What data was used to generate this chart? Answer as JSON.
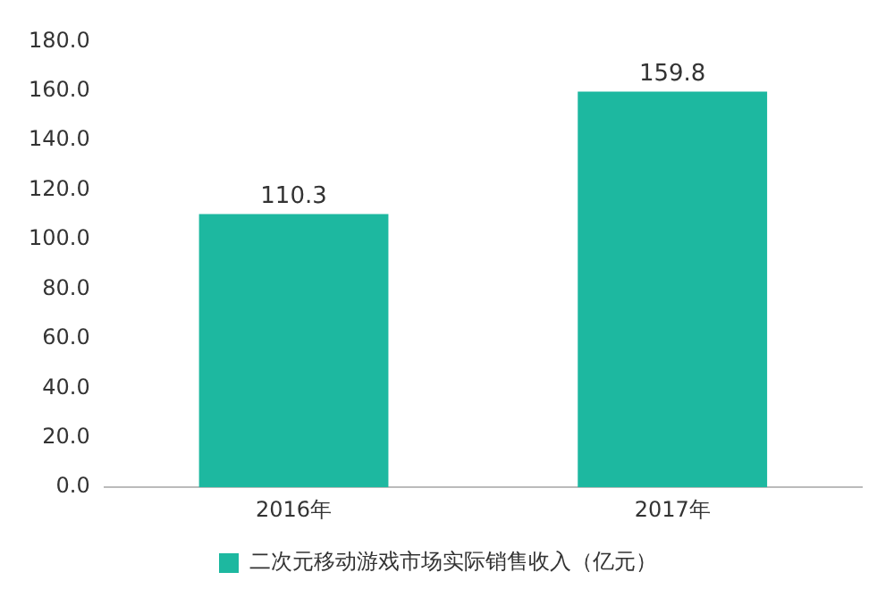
{
  "chart_data": {
    "type": "bar",
    "categories": [
      "2016年",
      "2017年"
    ],
    "series": [
      {
        "name": "二次元移动游戏市场实际销售收入（亿元）",
        "color": "#1db8a0",
        "values": [
          110.3,
          159.8
        ]
      }
    ],
    "data_labels": true,
    "legend": "bottom",
    "grid": false,
    "ylim": [
      0,
      180
    ],
    "yticks": [
      {
        "value": 0,
        "label": "0.0"
      },
      {
        "value": 20,
        "label": "20.0"
      },
      {
        "value": 40,
        "label": "40.0"
      },
      {
        "value": 60,
        "label": "60.0"
      },
      {
        "value": 80,
        "label": "80.0"
      },
      {
        "value": 100,
        "label": "100.0"
      },
      {
        "value": 120,
        "label": "120.0"
      },
      {
        "value": 140,
        "label": "140.0"
      },
      {
        "value": 160,
        "label": "160.0"
      },
      {
        "value": 180,
        "label": "180.0"
      }
    ]
  }
}
